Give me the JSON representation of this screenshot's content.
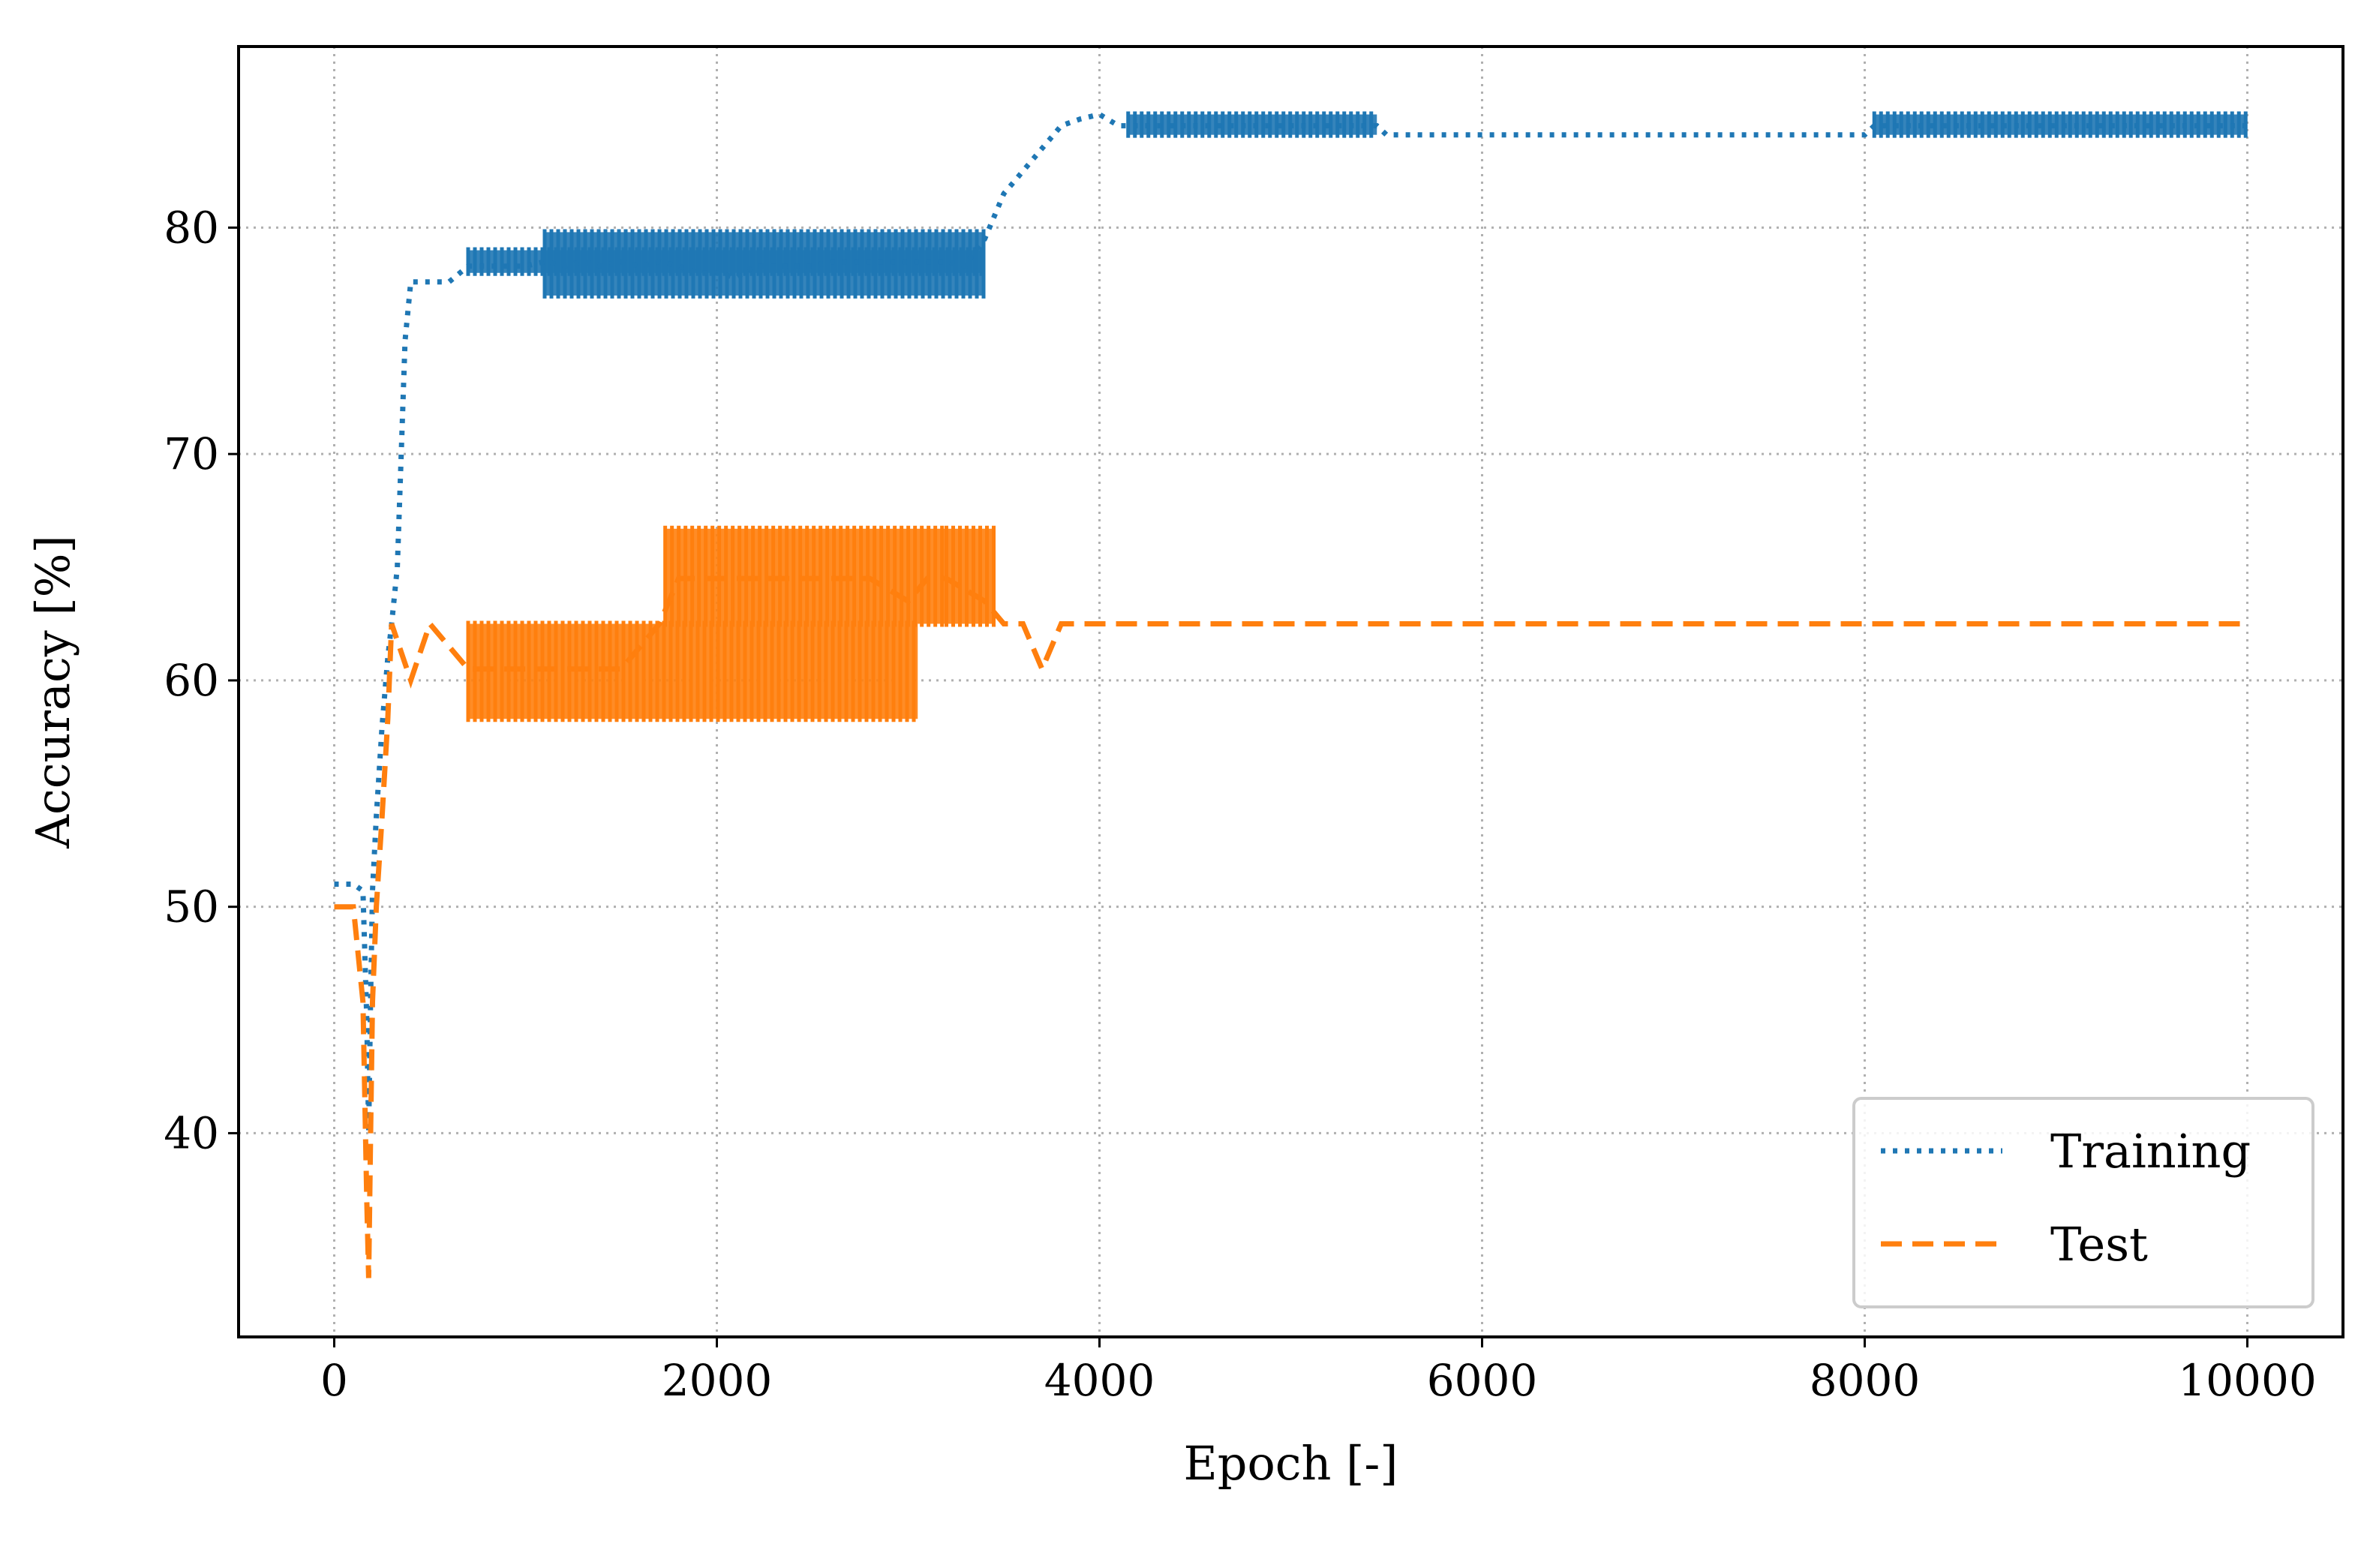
{
  "chart_data": {
    "type": "line",
    "title": "",
    "xlabel": "Epoch [-]",
    "ylabel": "Accuracy [%]",
    "xlim": [
      -500,
      10500
    ],
    "ylim": [
      31,
      88
    ],
    "xticks": [
      0,
      2000,
      4000,
      6000,
      8000,
      10000
    ],
    "yticks": [
      40,
      50,
      60,
      70,
      80
    ],
    "xtick_labels": [
      "0",
      "2000",
      "4000",
      "6000",
      "8000",
      "10000"
    ],
    "ytick_labels": [
      "40",
      "50",
      "60",
      "70",
      "80"
    ],
    "grid": true,
    "legend_position": "lower right",
    "series": [
      {
        "name": "Training",
        "color": "#1f77b4",
        "style": "dotted",
        "x": [
          0,
          50,
          100,
          150,
          170,
          180,
          190,
          200,
          220,
          250,
          280,
          300,
          330,
          350,
          370,
          400,
          500,
          600,
          700,
          800,
          900,
          1000,
          1100,
          1200,
          1300,
          1400,
          1500,
          1600,
          1700,
          1800,
          1900,
          2000,
          2100,
          2200,
          2300,
          2400,
          2500,
          2600,
          2700,
          2800,
          2900,
          3000,
          3100,
          3200,
          3300,
          3350,
          3400,
          3450,
          3500,
          3550,
          3600,
          3650,
          3700,
          3800,
          3900,
          4000,
          4100,
          4300,
          4500,
          4700,
          4900,
          5100,
          5300,
          5450,
          5500,
          6000,
          6500,
          7000,
          7500,
          8000,
          8050,
          8200,
          8400,
          8600,
          8800,
          9000,
          9200,
          9400,
          9600,
          9800,
          10000
        ],
        "y": [
          51,
          51,
          51,
          50.7,
          45,
          40,
          46,
          50.7,
          54,
          58,
          61,
          62.5,
          65,
          70,
          75,
          77.6,
          77.6,
          77.6,
          78.3,
          78.3,
          78.3,
          78.3,
          78.5,
          78.3,
          78.5,
          78.3,
          78.5,
          78.3,
          78.5,
          78.3,
          78,
          78,
          77.8,
          78.3,
          78.3,
          78.3,
          78.3,
          78.5,
          78.5,
          78.5,
          78.5,
          78.5,
          78.5,
          78.5,
          78.3,
          79,
          79.5,
          80.5,
          81.5,
          82,
          82.5,
          83,
          83.5,
          84.5,
          84.8,
          85,
          84.5,
          84.5,
          84.5,
          84.5,
          84.5,
          84.5,
          84.5,
          84.5,
          84.1,
          84.1,
          84.1,
          84.1,
          84.1,
          84.1,
          84.5,
          84.5,
          84.5,
          84.5,
          84.5,
          84.5,
          84.5,
          84.5,
          84.5,
          84.5,
          84.5
        ]
      },
      {
        "name": "Test",
        "color": "#ff7f0e",
        "style": "dashed",
        "x": [
          0,
          100,
          150,
          170,
          180,
          190,
          200,
          220,
          250,
          280,
          300,
          400,
          500,
          700,
          800,
          1000,
          1200,
          1500,
          1700,
          1800,
          2000,
          2200,
          2400,
          2600,
          2800,
          3000,
          3100,
          3200,
          3400,
          3500,
          3600,
          3700,
          3800,
          4000,
          5000,
          6000,
          7000,
          8000,
          9000,
          10000
        ],
        "y": [
          50,
          50,
          45.8,
          37,
          33.6,
          40,
          45.8,
          50,
          54,
          58.3,
          62.5,
          60,
          62.5,
          60.5,
          60.5,
          60.5,
          60.5,
          60.5,
          62.5,
          64.5,
          64.5,
          64.5,
          64.5,
          64.5,
          64.5,
          63.5,
          64.5,
          64.5,
          63.5,
          62.5,
          62.5,
          60.5,
          62.5,
          62.5,
          62.5,
          62.5,
          62.5,
          62.5,
          62.5,
          62.5
        ]
      }
    ],
    "bands": [
      {
        "series": "Training",
        "x_range": [
          700,
          3400
        ],
        "y_range": [
          78.0,
          79.0
        ]
      },
      {
        "series": "Training",
        "x_range": [
          1100,
          3400
        ],
        "y_range": [
          77.0,
          79.8
        ]
      },
      {
        "series": "Training",
        "x_range": [
          4150,
          5450
        ],
        "y_range": [
          84.1,
          85.0
        ]
      },
      {
        "series": "Training",
        "x_range": [
          8050,
          10000
        ],
        "y_range": [
          84.1,
          85.0
        ]
      },
      {
        "series": "Test",
        "x_range": [
          700,
          3050
        ],
        "y_range": [
          58.3,
          62.5
        ]
      },
      {
        "series": "Test",
        "x_range": [
          1730,
          3200
        ],
        "y_range": [
          62.5,
          66.7
        ]
      },
      {
        "series": "Test",
        "x_range": [
          3200,
          3450
        ],
        "y_range": [
          62.5,
          66.7
        ]
      }
    ]
  }
}
